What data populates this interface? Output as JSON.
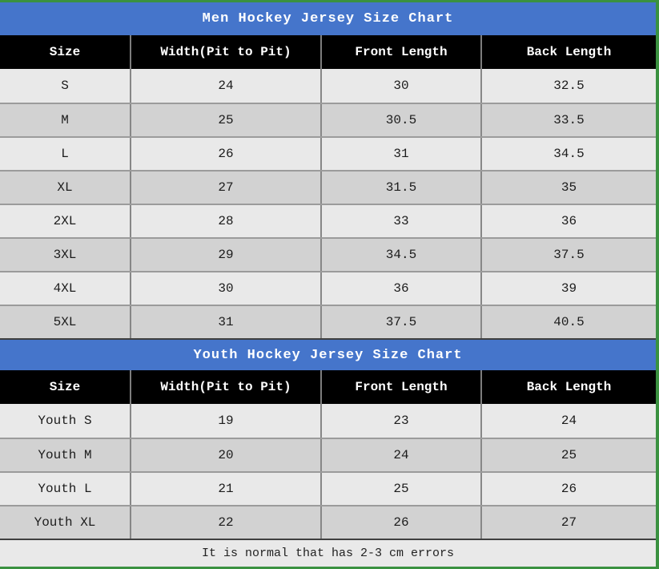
{
  "palette": {
    "accent_blue": "#4575cb",
    "border_green": "#3a9140",
    "header_black": "#000000",
    "row_light": "#e9e9e9",
    "row_dark": "#d2d2d2"
  },
  "men_table": {
    "title": "Men Hockey Jersey Size Chart",
    "headers": [
      "Size",
      "Width(Pit to Pit)",
      "Front Length",
      "Back Length"
    ],
    "rows": [
      [
        "S",
        "24",
        "30",
        "32.5"
      ],
      [
        "M",
        "25",
        "30.5",
        "33.5"
      ],
      [
        "L",
        "26",
        "31",
        "34.5"
      ],
      [
        "XL",
        "27",
        "31.5",
        "35"
      ],
      [
        "2XL",
        "28",
        "33",
        "36"
      ],
      [
        "3XL",
        "29",
        "34.5",
        "37.5"
      ],
      [
        "4XL",
        "30",
        "36",
        "39"
      ],
      [
        "5XL",
        "31",
        "37.5",
        "40.5"
      ]
    ]
  },
  "youth_table": {
    "title": "Youth Hockey Jersey Size Chart",
    "headers": [
      "Size",
      "Width(Pit to Pit)",
      "Front Length",
      "Back Length"
    ],
    "rows": [
      [
        "Youth S",
        "19",
        "23",
        "24"
      ],
      [
        "Youth M",
        "20",
        "24",
        "25"
      ],
      [
        "Youth L",
        "21",
        "25",
        "26"
      ],
      [
        "Youth XL",
        "22",
        "26",
        "27"
      ]
    ]
  },
  "footer": {
    "note": "It is normal that has 2-3 cm errors"
  },
  "chart_data": [
    {
      "type": "table",
      "title": "Men Hockey Jersey Size Chart",
      "columns": [
        "Size",
        "Width(Pit to Pit)",
        "Front Length",
        "Back Length"
      ],
      "rows": [
        [
          "S",
          24,
          30,
          32.5
        ],
        [
          "M",
          25,
          30.5,
          33.5
        ],
        [
          "L",
          26,
          31,
          34.5
        ],
        [
          "XL",
          27,
          31.5,
          35
        ],
        [
          "2XL",
          28,
          33,
          36
        ],
        [
          "3XL",
          29,
          34.5,
          37.5
        ],
        [
          "4XL",
          30,
          36,
          39
        ],
        [
          "5XL",
          31,
          37.5,
          40.5
        ]
      ]
    },
    {
      "type": "table",
      "title": "Youth Hockey Jersey Size Chart",
      "columns": [
        "Size",
        "Width(Pit to Pit)",
        "Front Length",
        "Back Length"
      ],
      "rows": [
        [
          "Youth S",
          19,
          23,
          24
        ],
        [
          "Youth M",
          20,
          24,
          25
        ],
        [
          "Youth L",
          21,
          25,
          26
        ],
        [
          "Youth XL",
          22,
          26,
          27
        ]
      ],
      "annotation": "It is normal that has 2-3 cm errors"
    }
  ]
}
